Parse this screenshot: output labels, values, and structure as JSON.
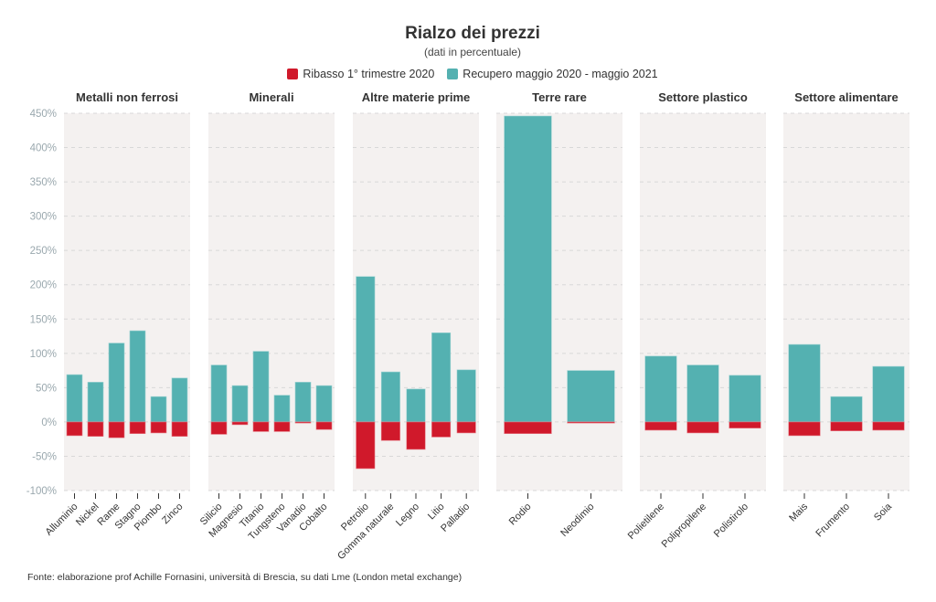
{
  "chart_data": {
    "type": "bar",
    "title": "Rialzo dei prezzi",
    "subtitle": "(dati in percentuale)",
    "ylim": [
      -100,
      450
    ],
    "yticks": [
      -100,
      -50,
      0,
      50,
      100,
      150,
      200,
      250,
      300,
      350,
      400,
      450
    ],
    "ytick_labels": [
      "-100%",
      "-50%",
      "0%",
      "50%",
      "100%",
      "150%",
      "200%",
      "250%",
      "300%",
      "350%",
      "400%",
      "450%"
    ],
    "grid": true,
    "legend_placement": "top",
    "legend": [
      {
        "name": "Ribasso 1° trimestre 2020",
        "color": "#d0192b"
      },
      {
        "name": "Recupero maggio 2020 - maggio 2021",
        "color": "#54b1b1"
      }
    ],
    "panels": [
      {
        "title": "Metalli non ferrosi",
        "categories": [
          "Alluminio",
          "Nickel",
          "Rame",
          "Stagno",
          "Piombo",
          "Zinco"
        ],
        "ribasso": [
          -20,
          -21,
          -23,
          -17,
          -16,
          -21
        ],
        "recupero": [
          69,
          58,
          115,
          133,
          37,
          64
        ]
      },
      {
        "title": "Minerali",
        "categories": [
          "Silicio",
          "Magnesio",
          "Titanio",
          "Tungsteno",
          "Vanadio",
          "Cobalto"
        ],
        "ribasso": [
          -18,
          -4,
          -14,
          -14,
          -1,
          -11
        ],
        "recupero": [
          83,
          53,
          103,
          39,
          58,
          53
        ]
      },
      {
        "title": "Altre materie prime",
        "categories": [
          "Petrolio",
          "Gomma naturale",
          "Legno",
          "Litio",
          "Palladio"
        ],
        "ribasso": [
          -68,
          -27,
          -40,
          -22,
          -16
        ],
        "recupero": [
          212,
          73,
          48,
          130,
          76
        ]
      },
      {
        "title": "Terre rare",
        "categories": [
          "Rodio",
          "Neodimio"
        ],
        "ribasso": [
          -17,
          -1
        ],
        "recupero": [
          446,
          75
        ]
      },
      {
        "title": "Settore plastico",
        "categories": [
          "Polietilene",
          "Polipropilene",
          "Polistirolo"
        ],
        "ribasso": [
          -12,
          -16,
          -9
        ],
        "recupero": [
          96,
          83,
          68
        ]
      },
      {
        "title": "Settore alimentare",
        "categories": [
          "Mais",
          "Frumento",
          "Soia"
        ],
        "ribasso": [
          -20,
          -13,
          -12
        ],
        "recupero": [
          113,
          37,
          81
        ]
      }
    ],
    "colors": {
      "panel_bg": "#f4f1f0",
      "grid": "#d8d8d8",
      "axis_text": "#9aa8ae"
    }
  },
  "footer": "Fonte: elaborazione prof Achille Fornasini, università di Brescia, su dati Lme (London metal exchange)"
}
